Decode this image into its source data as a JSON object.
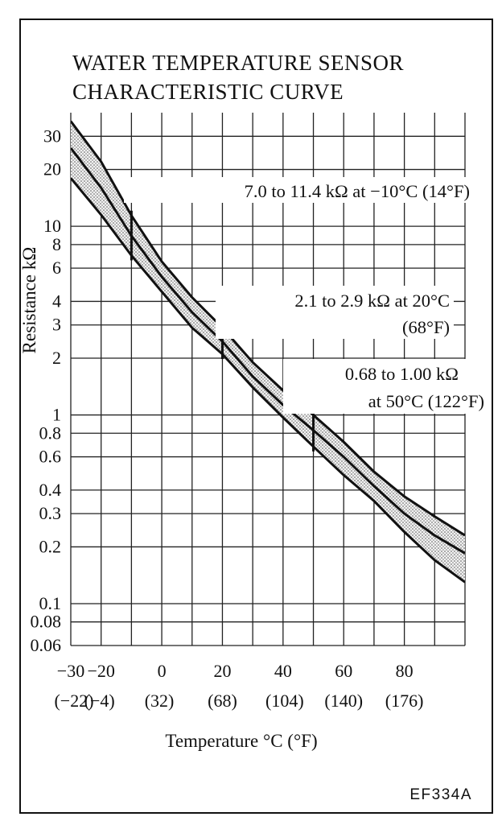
{
  "chart_data": {
    "type": "line",
    "title_lines": [
      "WATER TEMPERATURE SENSOR",
      "CHARACTERISTIC CURVE"
    ],
    "xlabel": "Temperature °C (°F)",
    "ylabel": "Resistance kΩ",
    "x_scale": "linear",
    "y_scale": "log",
    "xlim": [
      -30,
      100
    ],
    "ylim": [
      0.06,
      40
    ],
    "grid": true,
    "x_ticks": [
      {
        "value": -30,
        "c": "−30",
        "f": "(−22)"
      },
      {
        "value": -20,
        "c": "−20",
        "f": "(−4)"
      },
      {
        "value": 0,
        "c": "0",
        "f": "(32)"
      },
      {
        "value": 20,
        "c": "20",
        "f": "(68)"
      },
      {
        "value": 40,
        "c": "40",
        "f": "(104)"
      },
      {
        "value": 60,
        "c": "60",
        "f": "(140)"
      },
      {
        "value": 80,
        "c": "80",
        "f": "(176)"
      }
    ],
    "x_grid": [
      -30,
      -20,
      -10,
      0,
      10,
      20,
      30,
      40,
      50,
      60,
      70,
      80,
      90,
      100
    ],
    "y_ticks": [
      {
        "value": 30,
        "label": "30"
      },
      {
        "value": 20,
        "label": "20"
      },
      {
        "value": 10,
        "label": "10"
      },
      {
        "value": 8,
        "label": "8"
      },
      {
        "value": 6,
        "label": "6"
      },
      {
        "value": 4,
        "label": "4"
      },
      {
        "value": 3,
        "label": "3"
      },
      {
        "value": 2,
        "label": "2"
      },
      {
        "value": 1,
        "label": "1"
      },
      {
        "value": 0.8,
        "label": "0.8"
      },
      {
        "value": 0.6,
        "label": "0.6"
      },
      {
        "value": 0.4,
        "label": "0.4"
      },
      {
        "value": 0.3,
        "label": "0.3"
      },
      {
        "value": 0.2,
        "label": "0.2"
      },
      {
        "value": 0.1,
        "label": "0.1"
      },
      {
        "value": 0.08,
        "label": "0.08"
      },
      {
        "value": 0.06,
        "label": "0.06"
      }
    ],
    "y_grid": [
      30,
      20,
      10,
      8,
      6,
      4,
      3,
      2,
      1,
      0.8,
      0.6,
      0.4,
      0.3,
      0.2,
      0.1,
      0.08,
      0.06
    ],
    "series": [
      {
        "values": [
          {
            "x": -30,
            "y": 36
          },
          {
            "x": -20,
            "y": 22
          },
          {
            "x": -10,
            "y": 11.4
          },
          {
            "x": 0,
            "y": 6.5
          },
          {
            "x": 10,
            "y": 4.2
          },
          {
            "x": 20,
            "y": 2.9
          },
          {
            "x": 30,
            "y": 1.9
          },
          {
            "x": 40,
            "y": 1.35
          },
          {
            "x": 50,
            "y": 1.0
          },
          {
            "x": 60,
            "y": 0.72
          },
          {
            "x": 70,
            "y": 0.5
          },
          {
            "x": 80,
            "y": 0.37
          },
          {
            "x": 90,
            "y": 0.29
          },
          {
            "x": 100,
            "y": 0.23
          }
        ]
      },
      {
        "values": [
          {
            "x": -30,
            "y": 26
          },
          {
            "x": -20,
            "y": 16
          },
          {
            "x": -10,
            "y": 8.9
          },
          {
            "x": 0,
            "y": 5.4
          },
          {
            "x": 10,
            "y": 3.5
          },
          {
            "x": 20,
            "y": 2.45
          },
          {
            "x": 30,
            "y": 1.6
          },
          {
            "x": 40,
            "y": 1.13
          },
          {
            "x": 50,
            "y": 0.83
          },
          {
            "x": 60,
            "y": 0.6
          },
          {
            "x": 70,
            "y": 0.42
          },
          {
            "x": 80,
            "y": 0.3
          },
          {
            "x": 90,
            "y": 0.23
          },
          {
            "x": 100,
            "y": 0.185
          }
        ]
      },
      {
        "values": [
          {
            "x": -30,
            "y": 18
          },
          {
            "x": -20,
            "y": 11.5
          },
          {
            "x": -10,
            "y": 7.0
          },
          {
            "x": 0,
            "y": 4.5
          },
          {
            "x": 10,
            "y": 2.9
          },
          {
            "x": 20,
            "y": 2.1
          },
          {
            "x": 30,
            "y": 1.4
          },
          {
            "x": 40,
            "y": 0.97
          },
          {
            "x": 50,
            "y": 0.68
          },
          {
            "x": 60,
            "y": 0.48
          },
          {
            "x": 70,
            "y": 0.35
          },
          {
            "x": 80,
            "y": 0.24
          },
          {
            "x": 90,
            "y": 0.17
          },
          {
            "x": 100,
            "y": 0.13
          }
        ]
      }
    ],
    "annotations": [
      {
        "lines": [
          "7.0 to 11.4 kΩ at −10°C (14°F)"
        ],
        "x": -10,
        "ymin": 7.0,
        "ymax": 11.4
      },
      {
        "lines": [
          "2.1 to 2.9 kΩ at 20°C",
          "(68°F)"
        ],
        "x": 20,
        "ymin": 2.1,
        "ymax": 2.9
      },
      {
        "lines": [
          "0.68 to 1.00 kΩ",
          "at 50°C (122°F)"
        ],
        "x": 50,
        "ymin": 0.68,
        "ymax": 1.0
      }
    ]
  },
  "figure_code": "EF334A"
}
